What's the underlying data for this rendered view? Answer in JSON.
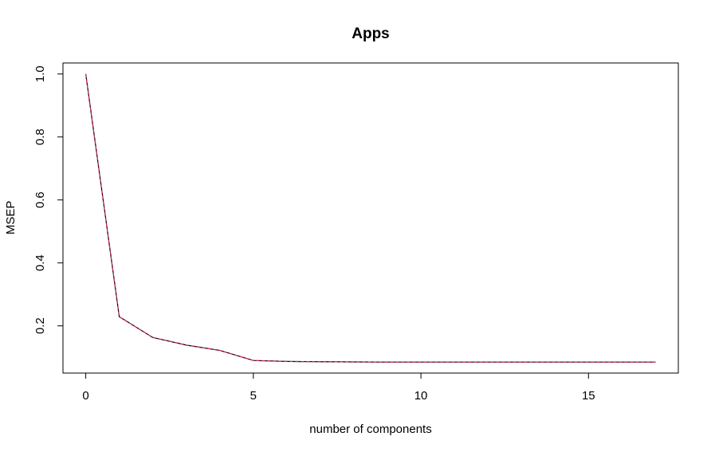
{
  "chart_data": {
    "type": "line",
    "title": "Apps",
    "xlabel": "number of components",
    "ylabel": "MSEP",
    "xlim": [
      -0.68,
      17.68
    ],
    "ylim": [
      0.05,
      1.035
    ],
    "x_ticks": [
      0,
      5,
      10,
      15
    ],
    "x_tick_labels": [
      "0",
      "5",
      "10",
      "15"
    ],
    "y_ticks": [
      0.2,
      0.4,
      0.6,
      0.8,
      1.0
    ],
    "y_tick_labels": [
      "0.2",
      "0.4",
      "0.6",
      "0.8",
      "1.0"
    ],
    "grid": false,
    "legend": "none",
    "x": [
      0,
      1,
      2,
      3,
      4,
      5,
      6,
      7,
      8,
      9,
      10,
      11,
      12,
      13,
      14,
      15,
      16,
      17
    ],
    "series": [
      {
        "values": [
          1.0,
          0.229,
          0.163,
          0.139,
          0.122,
          0.09,
          0.087,
          0.086,
          0.0855,
          0.085,
          0.085,
          0.085,
          0.085,
          0.085,
          0.085,
          0.085,
          0.085,
          0.085
        ],
        "color": "#000000",
        "style": "solid"
      },
      {
        "values": [
          1.0,
          0.229,
          0.163,
          0.139,
          0.122,
          0.09,
          0.087,
          0.086,
          0.0855,
          0.085,
          0.085,
          0.085,
          0.085,
          0.085,
          0.085,
          0.085,
          0.085,
          0.085
        ],
        "color": "#e0245e",
        "style": "dashed"
      }
    ]
  }
}
